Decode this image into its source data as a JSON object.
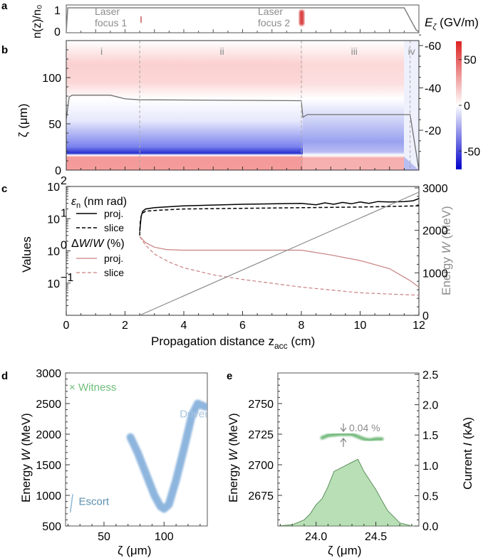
{
  "figure": {
    "panels": [
      "a",
      "b",
      "c",
      "d",
      "e"
    ]
  },
  "chart_data": [
    {
      "panel": "a",
      "type": "line",
      "ylabel": "n(z)/n₀",
      "ylim": [
        0,
        1
      ],
      "yticks": [
        "0",
        "1"
      ],
      "xlim": [
        0,
        12
      ],
      "series": [
        {
          "name": "density profile",
          "x": [
            0,
            0.05,
            0.1,
            11.5,
            11.7,
            11.9,
            12
          ],
          "y": [
            0,
            1,
            1,
            1,
            0.55,
            0.1,
            0
          ]
        }
      ],
      "annotations": [
        {
          "text_lines": [
            "Laser",
            "focus 1"
          ],
          "x": 2.5,
          "marker_color": "#d94040",
          "marker_strength": 0.3
        },
        {
          "text_lines": [
            "Laser",
            "focus 2"
          ],
          "x": 8.0,
          "marker_color": "#d94040",
          "marker_strength": 1.0
        }
      ],
      "right_label": "Eζ (GV/m)"
    },
    {
      "panel": "b",
      "type": "heatmap",
      "ylabel": "ζ (μm)",
      "ylim": [
        0,
        140
      ],
      "yticks": [
        "0",
        "50",
        "100"
      ],
      "xlim": [
        0,
        12
      ],
      "regions": [
        {
          "label": "i",
          "x": 1.2
        },
        {
          "label": "ii",
          "x": 5.3
        },
        {
          "label": "iii",
          "x": 9.8
        },
        {
          "label": "iv",
          "x": 11.75
        }
      ],
      "region_boundaries": [
        2.5,
        8.0,
        11.7
      ],
      "right_axis": {
        "ticks": [
          "-60",
          "-40",
          "-20"
        ],
        "values": [
          -60,
          -40,
          -20
        ]
      },
      "colorbar": {
        "range": [
          -70,
          70
        ],
        "ticks": [
          "50",
          "0",
          "-50"
        ],
        "values": [
          50,
          0,
          -50
        ],
        "low_color": "#0000cc",
        "mid_color": "#ffffff",
        "high_color": "#dd2222"
      },
      "field_profile_line": {
        "x": [
          0,
          0.1,
          0.2,
          1.5,
          2.0,
          2.5,
          8.0,
          8.05,
          8.2,
          11.7,
          11.9,
          12.0
        ],
        "y": [
          55,
          79,
          81,
          81,
          77,
          76,
          75,
          57,
          60,
          60,
          20,
          0
        ]
      }
    },
    {
      "panel": "c",
      "type": "line",
      "xlabel": "Propagation distance z_acc (cm)",
      "xlabel_main": "Propagation distance z",
      "xlabel_sub": "acc",
      "xlabel_tail": " (cm)",
      "ylabel": "Values",
      "ylim_log": [
        0.01,
        100
      ],
      "yticks": [
        "10⁻¹",
        "10⁰",
        "10¹",
        "10²"
      ],
      "xlim": [
        0,
        12
      ],
      "xticks": [
        "0",
        "2",
        "4",
        "6",
        "8",
        "10",
        "12"
      ],
      "y2label": "Energy W (MeV)",
      "y2lim": [
        0,
        3000
      ],
      "y2ticks": [
        "0",
        "1000",
        "2000",
        "3000"
      ],
      "legend": {
        "groups": [
          {
            "title": "εn (nm rad)",
            "items": [
              {
                "label": "proj.",
                "style": "solid",
                "color": "#000000"
              },
              {
                "label": "slice",
                "style": "dashed",
                "color": "#000000"
              }
            ]
          },
          {
            "title": "ΔW/W (%)",
            "items": [
              {
                "label": "proj.",
                "style": "solid",
                "color": "#c98080"
              },
              {
                "label": "slice",
                "style": "dashed",
                "color": "#c98080"
              }
            ]
          }
        ],
        "placement": "top-left"
      },
      "series": [
        {
          "name": "emittance proj.",
          "color": "#000000",
          "style": "solid",
          "axis": "left",
          "x": [
            2.5,
            2.55,
            2.6,
            2.7,
            3.0,
            4.0,
            6.0,
            8.0,
            8.5,
            8.8,
            9.1,
            9.4,
            9.7,
            10.0,
            10.3,
            10.6,
            11.0,
            11.5,
            11.8,
            12.0
          ],
          "y": [
            4,
            12,
            17,
            20,
            22,
            25,
            28,
            30,
            27,
            31,
            28,
            32,
            29,
            33,
            30,
            34,
            33,
            34,
            36,
            42
          ]
        },
        {
          "name": "emittance slice",
          "color": "#000000",
          "style": "dashed",
          "axis": "left",
          "x": [
            2.5,
            2.52,
            2.55,
            2.6,
            2.7,
            3.0,
            4.0,
            6.0,
            8.0,
            10.0,
            12.0
          ],
          "y": [
            3,
            8,
            12,
            15,
            17,
            18,
            20,
            21,
            22,
            23,
            25
          ]
        },
        {
          "name": "energy spread proj.",
          "color": "#c98080",
          "style": "solid",
          "axis": "left",
          "x": [
            2.5,
            2.7,
            3.0,
            3.4,
            4.0,
            6.0,
            8.0,
            9.0,
            10.0,
            11.0,
            11.7,
            12.0
          ],
          "y": [
            2.8,
            1.8,
            1.3,
            1.1,
            1.05,
            1.05,
            1.05,
            0.75,
            0.5,
            0.28,
            0.12,
            0.075
          ]
        },
        {
          "name": "energy spread slice",
          "color": "#c98080",
          "style": "dashed",
          "axis": "left",
          "x": [
            2.5,
            2.7,
            3.0,
            3.5,
            4.0,
            5.0,
            6.0,
            8.0,
            10.0,
            12.0
          ],
          "y": [
            2.8,
            1.5,
            0.8,
            0.45,
            0.3,
            0.18,
            0.13,
            0.075,
            0.05,
            0.042
          ]
        },
        {
          "name": "energy W",
          "color": "#8c8c8c",
          "style": "solid",
          "axis": "right",
          "x": [
            2.5,
            12.0
          ],
          "y": [
            0,
            2900
          ]
        }
      ]
    },
    {
      "panel": "d",
      "type": "scatter",
      "xlabel": "ζ (μm)",
      "ylabel": "Energy W (MeV)",
      "xlim": [
        18,
        136
      ],
      "ylim": [
        500,
        3000
      ],
      "xticks": [
        "50",
        "100"
      ],
      "yticks": [
        "500",
        "1000",
        "1500",
        "2000",
        "2500",
        "3000"
      ],
      "labels": [
        {
          "text": "× Witness",
          "color": "#6fbf7a",
          "x": 21,
          "y": 2770
        },
        {
          "text": "Driver",
          "color": "#a9c6e0",
          "x": 113,
          "y": 2330
        },
        {
          "text": "Escort",
          "color": "#5b8fb0",
          "x": 29,
          "y": 900
        }
      ],
      "driver_trace": {
        "x": [
          72,
          78,
          85,
          92,
          97,
          100,
          104,
          110,
          117,
          123,
          128,
          134
        ],
        "y": [
          1950,
          1700,
          1350,
          1000,
          820,
          780,
          850,
          1250,
          1800,
          2300,
          2500,
          2450
        ]
      },
      "escort_trace": {
        "x": [
          22,
          24
        ],
        "y": [
          720,
          1020
        ]
      },
      "driver_color": "#7aa9d8"
    },
    {
      "panel": "e",
      "type": "area",
      "xlabel": "ζ (μm)",
      "ylabel": "Energy W (MeV)",
      "y2label": "Current I (kA)",
      "xlim": [
        23.68,
        24.86
      ],
      "ylim": [
        2650,
        2775
      ],
      "xticks": [
        "24.0",
        "24.5"
      ],
      "yticks": [
        "2675",
        "2700",
        "2725",
        "2750"
      ],
      "y2lim": [
        0,
        2.5
      ],
      "y2ticks": [
        "0.0",
        "0.5",
        "1.0",
        "1.5",
        "2.0",
        "2.5"
      ],
      "annotation": "0.04 %",
      "current_profile": {
        "x": [
          23.68,
          23.8,
          23.9,
          23.95,
          24.0,
          24.05,
          24.1,
          24.15,
          24.2,
          24.25,
          24.3,
          24.35,
          24.4,
          24.45,
          24.5,
          24.55,
          24.6,
          24.7,
          24.8,
          24.86
        ],
        "y": [
          0,
          0.02,
          0.1,
          0.2,
          0.35,
          0.45,
          0.65,
          0.9,
          0.95,
          1.0,
          1.05,
          1.1,
          0.9,
          0.75,
          0.6,
          0.42,
          0.25,
          0.05,
          0,
          0
        ]
      },
      "witness_trace": {
        "x": [
          24.05,
          24.1,
          24.2,
          24.3,
          24.35,
          24.4,
          24.45,
          24.5,
          24.55
        ],
        "y": [
          2722,
          2724,
          2725,
          2725,
          2723,
          2721,
          2720,
          2721,
          2721
        ]
      },
      "fill_color": "#b9dfb6",
      "line_color": "#5a8f5a",
      "witness_color": "#4fa85a"
    }
  ]
}
